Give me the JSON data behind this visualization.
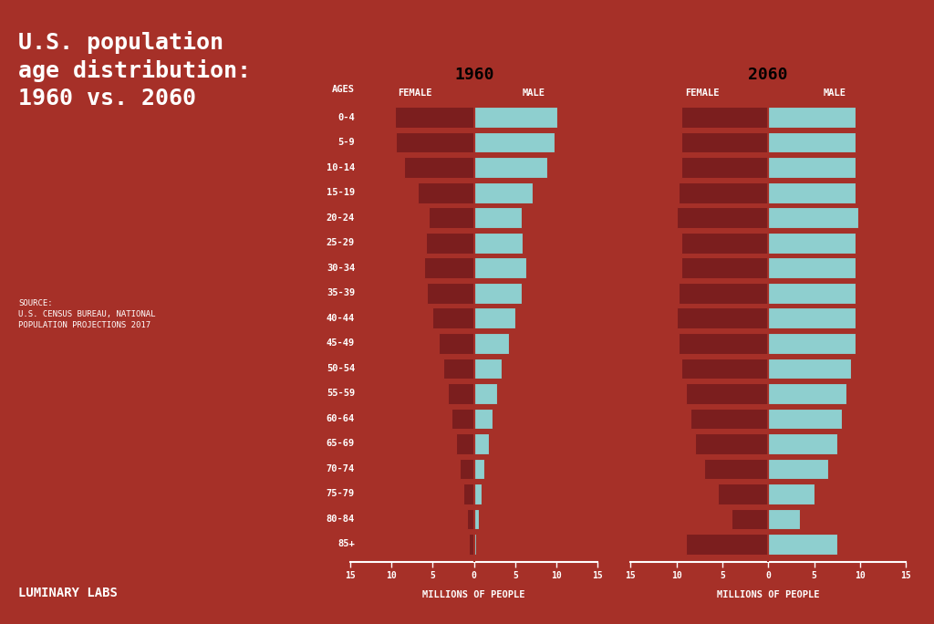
{
  "bg_color": "#A63028",
  "female_color": "#7B1E1E",
  "male_color": "#8ECFCF",
  "bar_edge_color": "#A63028",
  "title_text": "U.S. population\nage distribution:\n1960 vs. 2060",
  "source_text": "SOURCE:\nU.S. CENSUS BUREAU, NATIONAL\nPOPULATION PROJECTIONS 2017",
  "footer_text": "LUMINARY LABS",
  "age_groups": [
    "85+",
    "80-84",
    "75-79",
    "70-74",
    "65-69",
    "60-64",
    "55-59",
    "50-54",
    "45-49",
    "40-44",
    "35-39",
    "30-34",
    "25-29",
    "20-24",
    "15-19",
    "10-14",
    "5-9",
    "0-4"
  ],
  "year1960_female": [
    0.6,
    0.9,
    1.3,
    1.7,
    2.2,
    2.7,
    3.2,
    3.7,
    4.3,
    5.0,
    5.7,
    6.1,
    5.8,
    5.5,
    6.8,
    8.5,
    9.5,
    9.6
  ],
  "year1960_male": [
    0.3,
    0.6,
    0.9,
    1.3,
    1.8,
    2.2,
    2.8,
    3.4,
    4.2,
    5.0,
    5.8,
    6.3,
    5.9,
    5.8,
    7.1,
    8.9,
    9.8,
    10.1
  ],
  "year2060_female": [
    9.0,
    4.0,
    5.5,
    7.0,
    8.0,
    8.5,
    9.0,
    9.5,
    9.8,
    10.0,
    9.8,
    9.5,
    9.5,
    10.0,
    9.8,
    9.5,
    9.5,
    9.5
  ],
  "year2060_male": [
    7.5,
    3.5,
    5.0,
    6.5,
    7.5,
    8.0,
    8.5,
    9.0,
    9.5,
    9.5,
    9.5,
    9.5,
    9.5,
    9.8,
    9.5,
    9.5,
    9.5,
    9.5
  ],
  "xlabel": "MILLIONS OF PEOPLE",
  "year1_label": "1960",
  "year2_label": "2060",
  "female_label": "FEMALE",
  "male_label": "MALE",
  "ages_label": "AGES",
  "xlim": 15
}
